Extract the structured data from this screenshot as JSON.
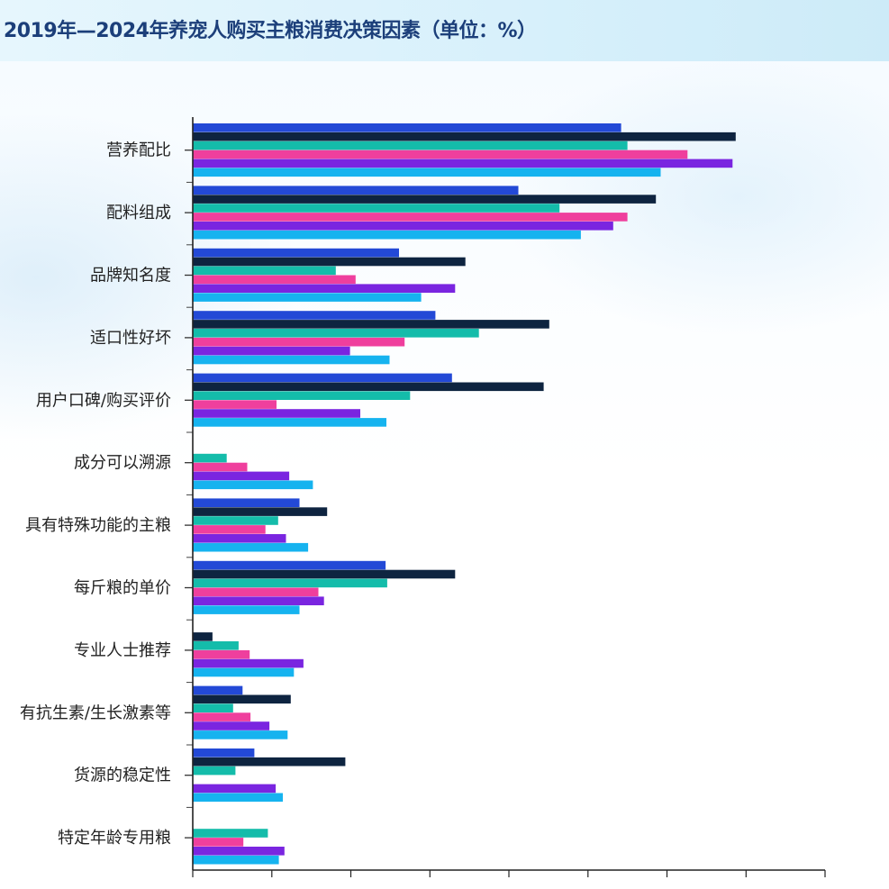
{
  "title": "2019年—2024年养宠人购买主粮消费决策因素（单位：%）",
  "chart_data": {
    "type": "bar",
    "orientation": "horizontal",
    "title": "2019年—2024年养宠人购买主粮消费决策因素（单位：%）",
    "xlabel": "",
    "ylabel": "",
    "xlim": [
      0,
      80
    ],
    "grid": false,
    "legend": "none",
    "categories": [
      "营养配比",
      "配料组成",
      "品牌知名度",
      "适口性好坏",
      "用户口碑/购买评价",
      "成分可以溯源",
      "具有特殊功能的主粮",
      "每斤粮的单价",
      "专业人士推荐",
      "有抗生素/生长激素等",
      "货源的稳定性",
      "特定年龄专用粮"
    ],
    "series": [
      {
        "color": "#2349d6",
        "values": [
          54.2,
          41.2,
          26.1,
          30.7,
          32.8,
          null,
          13.5,
          24.4,
          null,
          6.3,
          7.8,
          null
        ]
      },
      {
        "color": "#0e2440",
        "values": [
          68.7,
          58.6,
          34.5,
          45.1,
          44.4,
          null,
          17.0,
          33.2,
          2.5,
          12.4,
          19.3,
          null
        ]
      },
      {
        "color": "#14bcaa",
        "values": [
          55.0,
          46.4,
          18.1,
          36.2,
          27.5,
          4.3,
          10.8,
          24.6,
          5.8,
          5.1,
          5.4,
          9.5
        ]
      },
      {
        "color": "#ef3f9d",
        "values": [
          62.6,
          55.0,
          20.6,
          26.8,
          10.6,
          6.9,
          9.2,
          15.9,
          7.2,
          7.3,
          null,
          6.4
        ]
      },
      {
        "color": "#7a25e0",
        "values": [
          68.3,
          53.2,
          33.2,
          19.9,
          21.2,
          12.2,
          11.8,
          16.6,
          14.0,
          9.7,
          10.5,
          11.6
        ]
      },
      {
        "color": "#16b3ef",
        "values": [
          59.2,
          49.1,
          28.9,
          24.9,
          24.5,
          15.2,
          14.6,
          13.5,
          12.8,
          12.0,
          11.4,
          10.9
        ]
      }
    ]
  }
}
